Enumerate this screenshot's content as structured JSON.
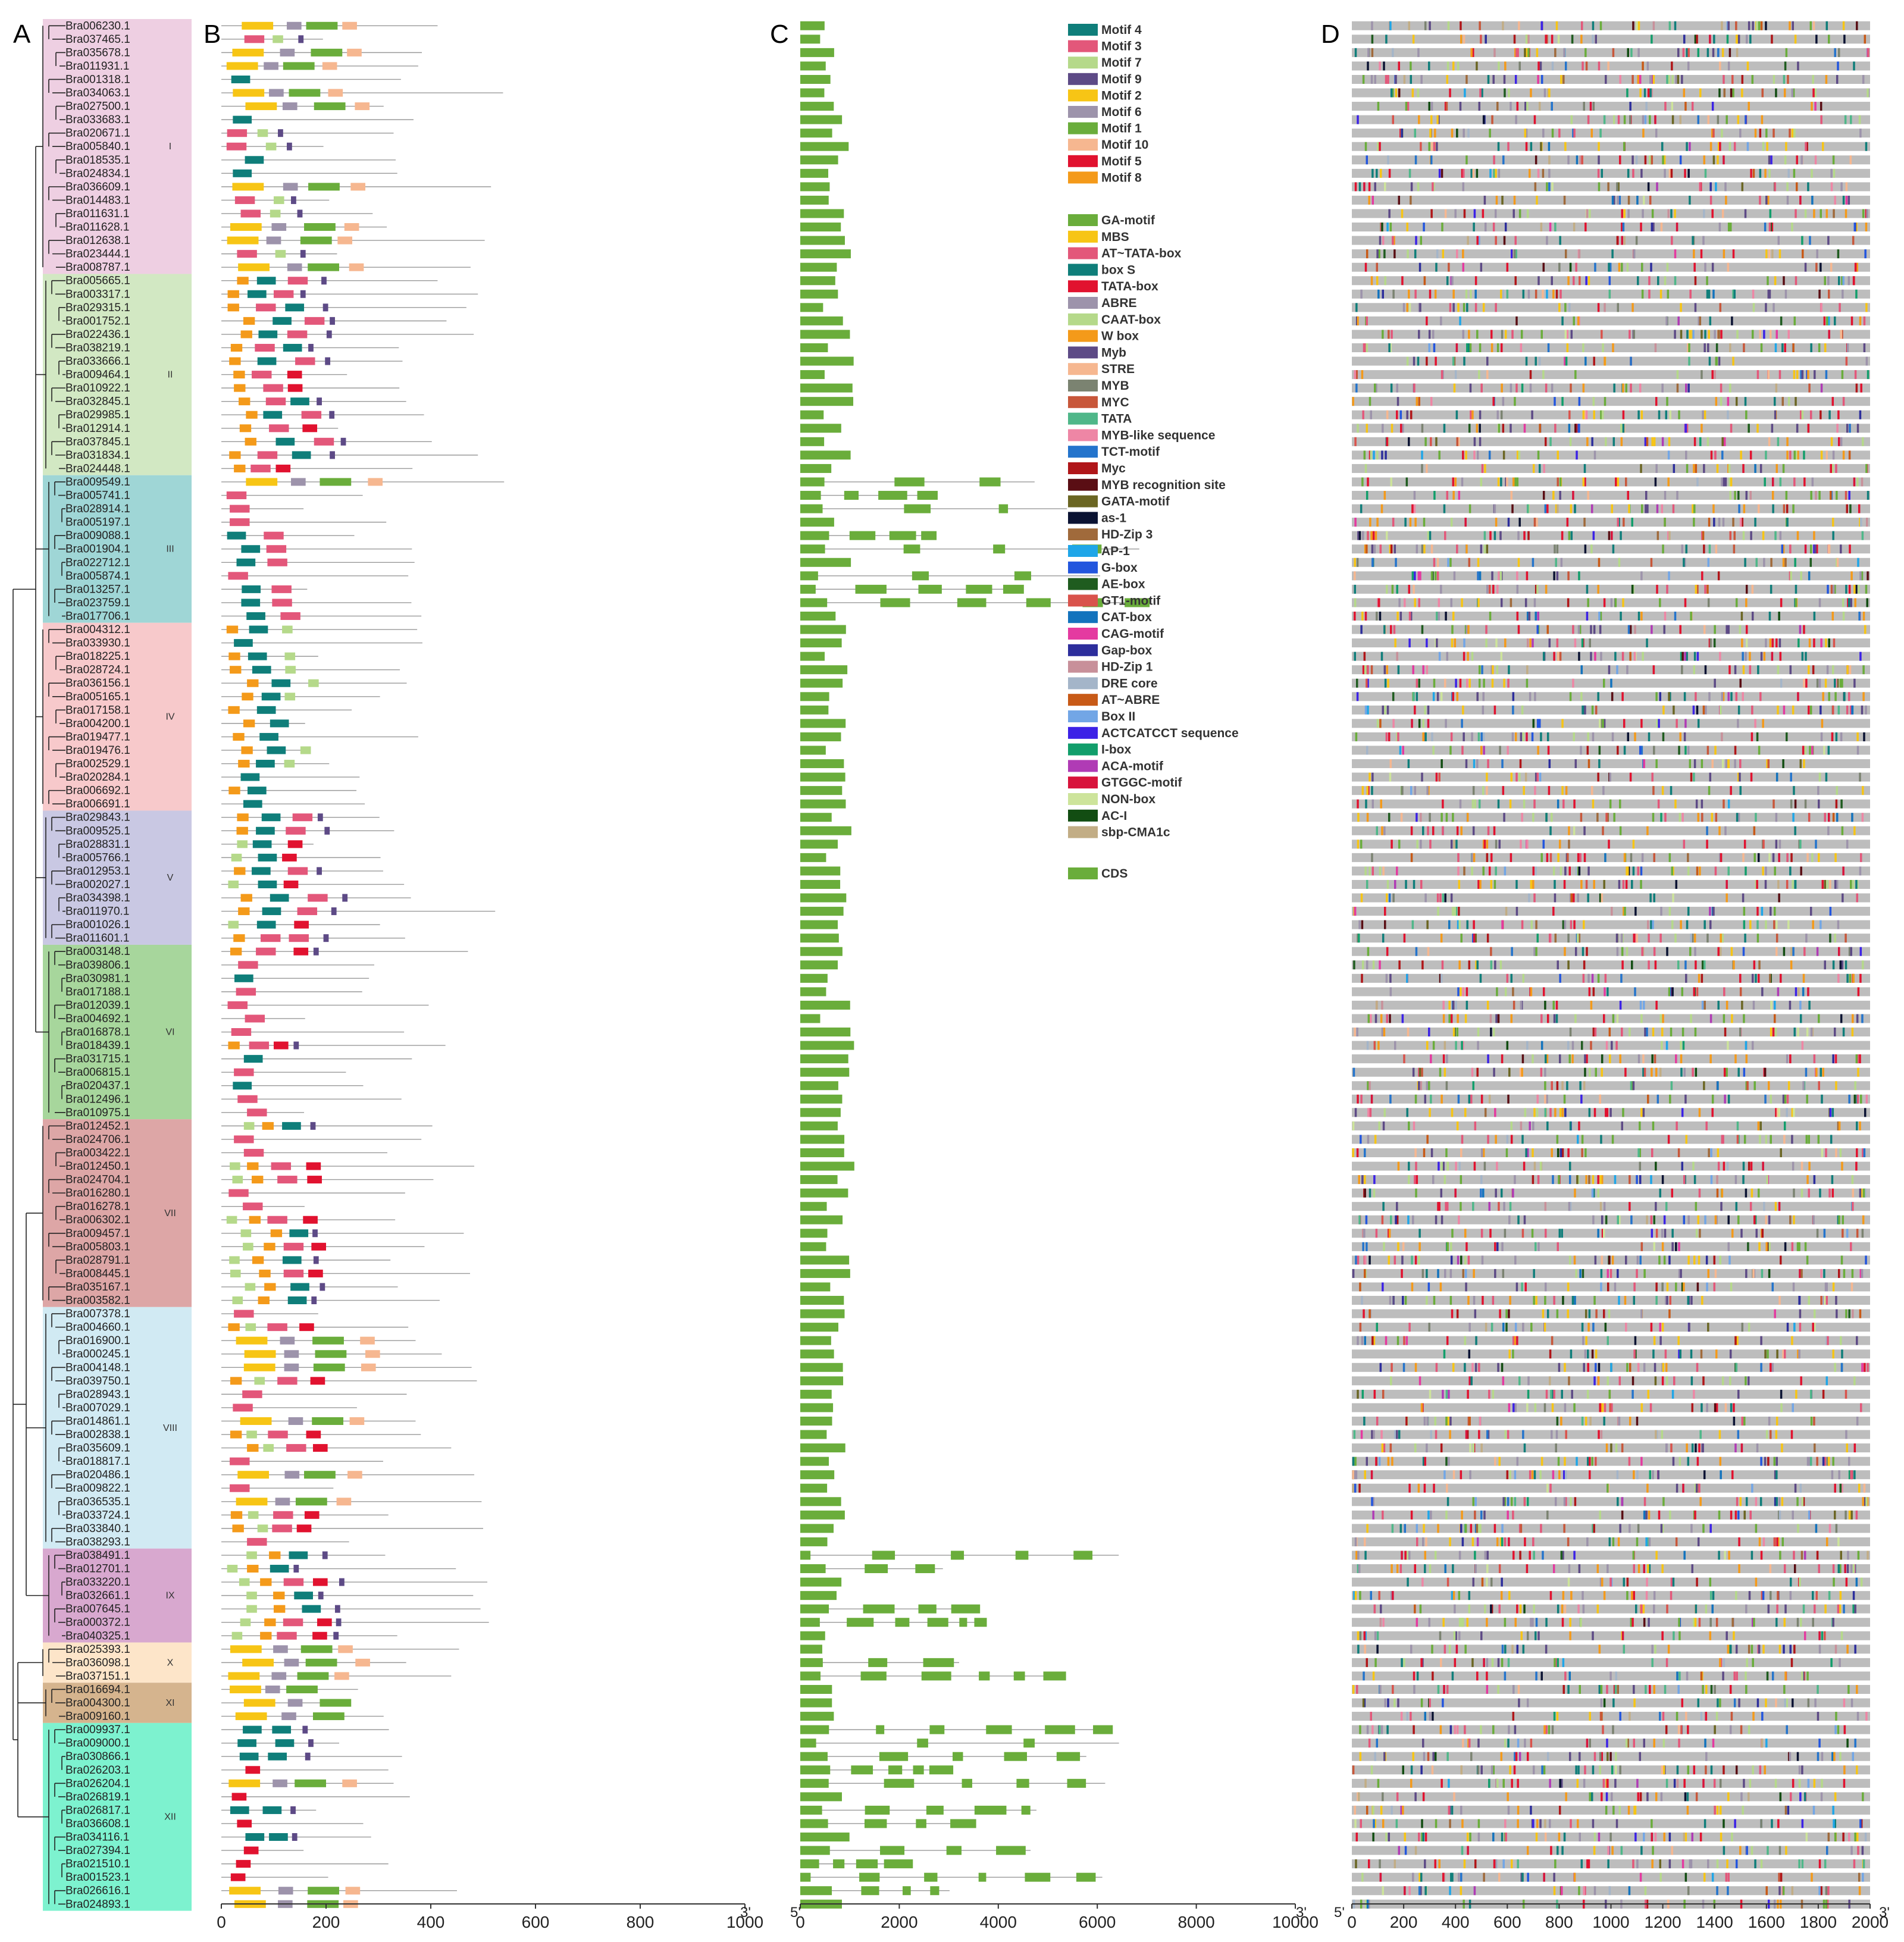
{
  "panels": [
    "A",
    "B",
    "C",
    "D"
  ],
  "prime_3": "3'",
  "prime_5": "5'",
  "groups": [
    {
      "id": "I",
      "color": "#eecfe2",
      "genes": [
        "Bra006230.1",
        "Bra037465.1",
        "Bra035678.1",
        "Bra011931.1",
        "Bra001318.1",
        "Bra034063.1",
        "Bra027500.1",
        "Bra033683.1",
        "Bra020671.1",
        "Bra005840.1",
        "Bra018535.1",
        "Bra024834.1",
        "Bra036609.1",
        "Bra014483.1",
        "Bra011631.1",
        "Bra011628.1",
        "Bra012638.1",
        "Bra023444.1",
        "Bra008787.1"
      ]
    },
    {
      "id": "II",
      "color": "#d2e8c3",
      "genes": [
        "Bra005665.1",
        "Bra003317.1",
        "Bra029315.1",
        "Bra001752.1",
        "Bra022436.1",
        "Bra038219.1",
        "Bra033666.1",
        "Bra009464.1",
        "Bra010922.1",
        "Bra032845.1",
        "Bra029985.1",
        "Bra012914.1",
        "Bra037845.1",
        "Bra031834.1",
        "Bra024448.1"
      ]
    },
    {
      "id": "III",
      "color": "#9fd6d6",
      "genes": [
        "Bra009549.1",
        "Bra005741.1",
        "Bra028914.1",
        "Bra005197.1",
        "Bra009088.1",
        "Bra001904.1",
        "Bra022712.1",
        "Bra005874.1",
        "Bra013257.1",
        "Bra023759.1",
        "Bra017706.1"
      ]
    },
    {
      "id": "IV",
      "color": "#f7c9cb",
      "genes": [
        "Bra004312.1",
        "Bra033930.1",
        "Bra018225.1",
        "Bra028724.1",
        "Bra036156.1",
        "Bra005165.1",
        "Bra017158.1",
        "Bra004200.1",
        "Bra019477.1",
        "Bra019476.1",
        "Bra002529.1",
        "Bra020284.1",
        "Bra006692.1",
        "Bra006691.1"
      ]
    },
    {
      "id": "V",
      "color": "#c9c8e3",
      "genes": [
        "Bra029843.1",
        "Bra009525.1",
        "Bra028831.1",
        "Bra005766.1",
        "Bra012953.1",
        "Bra002027.1",
        "Bra034398.1",
        "Bra011970.1",
        "Bra001026.1",
        "Bra011601.1"
      ]
    },
    {
      "id": "VI",
      "color": "#a7d69c",
      "genes": [
        "Bra003148.1",
        "Bra039806.1",
        "Bra030981.1",
        "Bra017188.1",
        "Bra012039.1",
        "Bra004692.1",
        "Bra016878.1",
        "Bra018439.1",
        "Bra031715.1",
        "Bra006815.1",
        "Bra020437.1",
        "Bra012496.1",
        "Bra010975.1"
      ]
    },
    {
      "id": "VII",
      "color": "#dda6a6",
      "genes": [
        "Bra012452.1",
        "Bra024706.1",
        "Bra003422.1",
        "Bra012450.1",
        "Bra024704.1",
        "Bra016280.1",
        "Bra016278.1",
        "Bra006302.1",
        "Bra009457.1",
        "Bra005803.1",
        "Bra028791.1",
        "Bra008445.1",
        "Bra035167.1",
        "Bra003582.1"
      ]
    },
    {
      "id": "VIII",
      "color": "#d1eaf3",
      "genes": [
        "Bra007378.1",
        "Bra004660.1",
        "Bra016900.1",
        "Bra000245.1",
        "Bra004148.1",
        "Bra039750.1",
        "Bra028943.1",
        "Bra007029.1",
        "Bra014861.1",
        "Bra002838.1",
        "Bra035609.1",
        "Bra018817.1",
        "Bra020486.1",
        "Bra009822.1",
        "Bra036535.1",
        "Bra033724.1",
        "Bra033840.1",
        "Bra038293.1"
      ]
    },
    {
      "id": "IX",
      "color": "#d8a8cf",
      "genes": [
        "Bra038491.1",
        "Bra012701.1",
        "Bra033220.1",
        "Bra032661.1",
        "Bra007645.1",
        "Bra000372.1",
        "Bra040325.1"
      ]
    },
    {
      "id": "X",
      "color": "#fde5c9",
      "genes": [
        "Bra025393.1",
        "Bra036098.1",
        "Bra037151.1"
      ]
    },
    {
      "id": "XI",
      "color": "#d5b48e",
      "genes": [
        "Bra016694.1",
        "Bra004300.1",
        "Bra009160.1"
      ]
    },
    {
      "id": "XII",
      "color": "#7df2cf",
      "genes": [
        "Bra009937.1",
        "Bra009000.1",
        "Bra030866.1",
        "Bra026203.1",
        "Bra026204.1",
        "Bra026819.1",
        "Bra026817.1",
        "Bra036608.1",
        "Bra034116.1",
        "Bra027394.1",
        "Bra021510.1",
        "Bra001523.1",
        "Bra026616.1",
        "Bra024893.1"
      ]
    }
  ],
  "motif_legend": [
    {
      "name": "Motif 4",
      "color": "#0f7e7a"
    },
    {
      "name": "Motif 3",
      "color": "#e3577a"
    },
    {
      "name": "Motif 7",
      "color": "#b5d98a"
    },
    {
      "name": "Motif 9",
      "color": "#5d4a86"
    },
    {
      "name": "Motif 2",
      "color": "#f7c515"
    },
    {
      "name": "Motif 6",
      "color": "#9d93ab"
    },
    {
      "name": "Motif 1",
      "color": "#6aad3b"
    },
    {
      "name": "Motif 10",
      "color": "#f6b790"
    },
    {
      "name": "Motif 5",
      "color": "#e1122f"
    },
    {
      "name": "Motif 8",
      "color": "#f49a1a"
    }
  ],
  "element_legend": [
    {
      "name": "GA-motif",
      "color": "#6aad3b"
    },
    {
      "name": "MBS",
      "color": "#f7c515"
    },
    {
      "name": "AT~TATA-box",
      "color": "#e3577a"
    },
    {
      "name": "box S",
      "color": "#0f7e7a"
    },
    {
      "name": "TATA-box",
      "color": "#e1122f"
    },
    {
      "name": "ABRE",
      "color": "#9d93ab"
    },
    {
      "name": "CAAT-box",
      "color": "#b5d98a"
    },
    {
      "name": "W box",
      "color": "#f49a1a"
    },
    {
      "name": "Myb",
      "color": "#5d4a86"
    },
    {
      "name": "STRE",
      "color": "#f6b790"
    },
    {
      "name": "MYB",
      "color": "#7b8371"
    },
    {
      "name": "MYC",
      "color": "#c8573a"
    },
    {
      "name": "TATA",
      "color": "#4fb789"
    },
    {
      "name": "MYB-like sequence",
      "color": "#ee86a5"
    },
    {
      "name": "TCT-motif",
      "color": "#2474cc"
    },
    {
      "name": "Myc",
      "color": "#b01619"
    },
    {
      "name": "MYB recognition site",
      "color": "#5a0e14"
    },
    {
      "name": "GATA-motif",
      "color": "#6b6623"
    },
    {
      "name": "as-1",
      "color": "#0b1333"
    },
    {
      "name": "HD-Zip 3",
      "color": "#a06a3b"
    },
    {
      "name": "AP-1",
      "color": "#1fa6e8"
    },
    {
      "name": "G-box",
      "color": "#2356de"
    },
    {
      "name": "AE-box",
      "color": "#1f5c1f"
    },
    {
      "name": "GT1-motif",
      "color": "#d9534c"
    },
    {
      "name": "CAT-box",
      "color": "#1373bd"
    },
    {
      "name": "CAG-motif",
      "color": "#e43aa0"
    },
    {
      "name": "Gap-box",
      "color": "#2d2e9c"
    },
    {
      "name": "HD-Zip 1",
      "color": "#c8909a"
    },
    {
      "name": "DRE core",
      "color": "#a4b5c9"
    },
    {
      "name": "AT~ABRE",
      "color": "#c85a17"
    },
    {
      "name": "Box II",
      "color": "#72a6e6"
    },
    {
      "name": "ACTCATCCT sequence",
      "color": "#3c22e6"
    },
    {
      "name": "I-box",
      "color": "#129e6b"
    },
    {
      "name": "ACA-motif",
      "color": "#b03bb5"
    },
    {
      "name": "GTGGC-motif",
      "color": "#d8133b"
    },
    {
      "name": "NON-box",
      "color": "#cde49b"
    },
    {
      "name": "AC-I",
      "color": "#124d12"
    },
    {
      "name": "sbp-CMA1c",
      "color": "#c2ad85"
    }
  ],
  "cds_legend": {
    "name": "CDS",
    "color": "#6aad3b"
  },
  "chart_data": [
    {
      "panel": "A",
      "type": "tree",
      "leaf_groups": [
        "I",
        "II",
        "III",
        "IV",
        "V",
        "VI",
        "VII",
        "VIII",
        "IX",
        "X",
        "XI",
        "XII"
      ]
    },
    {
      "panel": "B",
      "type": "motif-map",
      "x_ticks": [
        0,
        200,
        400,
        600,
        800,
        1000
      ],
      "xlim": [
        0,
        1000
      ]
    },
    {
      "panel": "C",
      "type": "gene-structure",
      "x_ticks": [
        0,
        2000,
        4000,
        6000,
        8000,
        10000
      ],
      "xlim": [
        0,
        10000
      ]
    },
    {
      "panel": "D",
      "type": "promoter-elements",
      "x_ticks": [
        0,
        200,
        400,
        600,
        800,
        1000,
        1200,
        1400,
        1600,
        1800,
        2000
      ],
      "xlim": [
        0,
        2000
      ]
    }
  ]
}
